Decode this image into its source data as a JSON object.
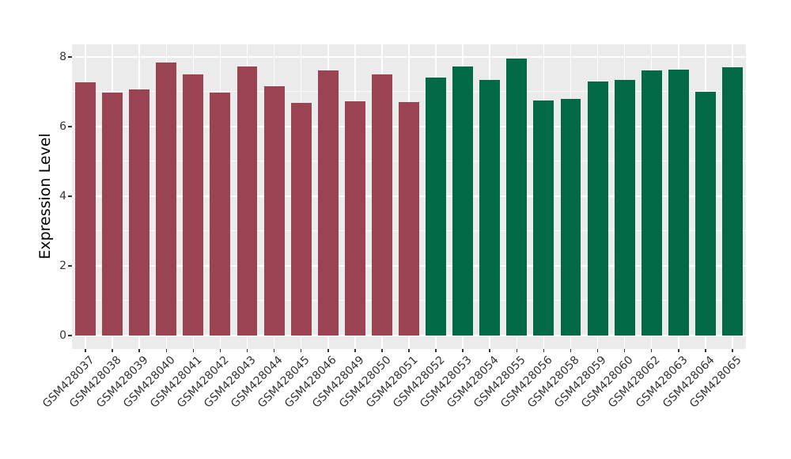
{
  "chart_data": {
    "type": "bar",
    "title": "",
    "xlabel": "",
    "ylabel": "Expression Level",
    "ylim": [
      0,
      8.35
    ],
    "yticks": [
      "0",
      "2",
      "4",
      "6",
      "8"
    ],
    "minor_yticks": [
      1,
      3,
      5,
      7
    ],
    "grid": true,
    "legend_position": "none",
    "panel_background": "#EBEBEB",
    "gridline_color": "#FFFFFF",
    "groups": {
      "maroon": "#9A4453",
      "green": "#016946"
    },
    "bars": [
      {
        "label": "GSM428037",
        "value": 7.27,
        "group": "maroon"
      },
      {
        "label": "GSM428038",
        "value": 6.98,
        "group": "maroon"
      },
      {
        "label": "GSM428039",
        "value": 7.07,
        "group": "maroon"
      },
      {
        "label": "GSM428040",
        "value": 7.84,
        "group": "maroon"
      },
      {
        "label": "GSM428041",
        "value": 7.49,
        "group": "maroon"
      },
      {
        "label": "GSM428042",
        "value": 6.97,
        "group": "maroon"
      },
      {
        "label": "GSM428043",
        "value": 7.73,
        "group": "maroon"
      },
      {
        "label": "GSM428044",
        "value": 7.15,
        "group": "maroon"
      },
      {
        "label": "GSM428045",
        "value": 6.68,
        "group": "maroon"
      },
      {
        "label": "GSM428046",
        "value": 7.62,
        "group": "maroon"
      },
      {
        "label": "GSM428049",
        "value": 6.73,
        "group": "maroon"
      },
      {
        "label": "GSM428050",
        "value": 7.5,
        "group": "maroon"
      },
      {
        "label": "GSM428051",
        "value": 6.71,
        "group": "maroon"
      },
      {
        "label": "GSM428052",
        "value": 7.41,
        "group": "green"
      },
      {
        "label": "GSM428053",
        "value": 7.73,
        "group": "green"
      },
      {
        "label": "GSM428054",
        "value": 7.35,
        "group": "green"
      },
      {
        "label": "GSM428055",
        "value": 7.95,
        "group": "green"
      },
      {
        "label": "GSM428056",
        "value": 6.76,
        "group": "green"
      },
      {
        "label": "GSM428058",
        "value": 6.8,
        "group": "green"
      },
      {
        "label": "GSM428059",
        "value": 7.3,
        "group": "green"
      },
      {
        "label": "GSM428060",
        "value": 7.35,
        "group": "green"
      },
      {
        "label": "GSM428062",
        "value": 7.61,
        "group": "green"
      },
      {
        "label": "GSM428063",
        "value": 7.64,
        "group": "green"
      },
      {
        "label": "GSM428064",
        "value": 7.0,
        "group": "green"
      },
      {
        "label": "GSM428065",
        "value": 7.7,
        "group": "green"
      }
    ]
  }
}
